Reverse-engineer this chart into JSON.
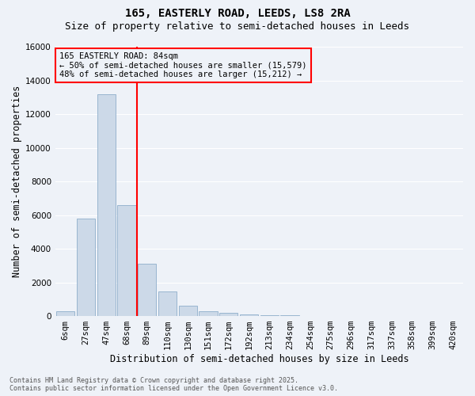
{
  "title": "165, EASTERLY ROAD, LEEDS, LS8 2RA",
  "subtitle": "Size of property relative to semi-detached houses in Leeds",
  "xlabel": "Distribution of semi-detached houses by size in Leeds",
  "ylabel": "Number of semi-detached properties",
  "bar_labels": [
    "6sqm",
    "27sqm",
    "47sqm",
    "68sqm",
    "89sqm",
    "110sqm",
    "130sqm",
    "151sqm",
    "172sqm",
    "192sqm",
    "213sqm",
    "234sqm",
    "254sqm",
    "275sqm",
    "296sqm",
    "317sqm",
    "337sqm",
    "358sqm",
    "399sqm",
    "420sqm"
  ],
  "bar_values": [
    300,
    5800,
    13200,
    6600,
    3100,
    1450,
    600,
    270,
    200,
    100,
    50,
    30,
    20,
    10,
    5,
    3,
    2,
    1,
    0,
    0
  ],
  "bar_color": "#ccd9e8",
  "bar_edge_color": "#8eaecb",
  "vline_x_index": 3,
  "vline_color": "red",
  "annotation_title": "165 EASTERLY ROAD: 84sqm",
  "annotation_line1": "← 50% of semi-detached houses are smaller (15,579)",
  "annotation_line2": "48% of semi-detached houses are larger (15,212) →",
  "annotation_box_color": "red",
  "ylim": [
    0,
    16000
  ],
  "yticks": [
    0,
    2000,
    4000,
    6000,
    8000,
    10000,
    12000,
    14000,
    16000
  ],
  "footer1": "Contains HM Land Registry data © Crown copyright and database right 2025.",
  "footer2": "Contains public sector information licensed under the Open Government Licence v3.0.",
  "bg_color": "#eef2f8",
  "grid_color": "#ffffff",
  "title_fontsize": 10,
  "subtitle_fontsize": 9,
  "axis_label_fontsize": 8.5,
  "tick_fontsize": 7.5,
  "annot_fontsize": 7.5,
  "footer_fontsize": 6
}
